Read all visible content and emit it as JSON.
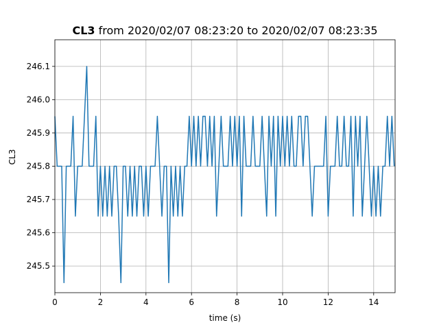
{
  "chart_data": {
    "type": "line",
    "title_name": "CL3",
    "title": "from 2020/02/07 08:23:20 to 2020/02/07 08:23:35",
    "xlabel": "time (s)",
    "ylabel": "CL3",
    "color": "#1f77b4",
    "grid": true,
    "xlim": [
      0,
      14.94
    ],
    "ylim": [
      245.42,
      246.18
    ],
    "xticks": [
      0,
      2,
      4,
      6,
      8,
      10,
      12,
      14
    ],
    "yticks": [
      245.5,
      245.6,
      245.7,
      245.8,
      245.9,
      {
        "value": 246,
        "label": "246.0"
      },
      246.1
    ],
    "x": [
      0,
      0.1,
      0.2,
      0.3,
      0.4,
      0.5,
      0.6,
      0.7,
      0.8,
      0.9,
      1,
      1.1,
      1.2,
      1.3,
      1.4,
      1.5,
      1.6,
      1.7,
      1.8,
      1.9,
      2,
      2.1,
      2.2,
      2.3,
      2.4,
      2.5,
      2.6,
      2.7,
      2.8,
      2.9,
      3,
      3.1,
      3.2,
      3.3,
      3.4,
      3.5,
      3.6,
      3.7,
      3.8,
      3.9,
      4,
      4.1,
      4.2,
      4.3,
      4.4,
      4.5,
      4.6,
      4.7,
      4.8,
      4.9,
      5,
      5.1,
      5.2,
      5.3,
      5.4,
      5.5,
      5.6,
      5.7,
      5.8,
      5.9,
      6,
      6.1,
      6.2,
      6.3,
      6.4,
      6.5,
      6.6,
      6.7,
      6.8,
      6.9,
      7,
      7.1,
      7.2,
      7.3,
      7.4,
      7.5,
      7.6,
      7.7,
      7.8,
      7.9,
      8,
      8.1,
      8.2,
      8.3,
      8.4,
      8.5,
      8.6,
      8.7,
      8.8,
      8.9,
      9,
      9.1,
      9.2,
      9.3,
      9.4,
      9.5,
      9.6,
      9.7,
      9.8,
      9.9,
      10,
      10.1,
      10.2,
      10.3,
      10.4,
      10.5,
      10.6,
      10.7,
      10.8,
      10.9,
      11,
      11.1,
      11.2,
      11.3,
      11.4,
      11.5,
      11.6,
      11.7,
      11.8,
      11.9,
      12,
      12.1,
      12.2,
      12.3,
      12.4,
      12.5,
      12.6,
      12.7,
      12.8,
      12.9,
      13,
      13.1,
      13.2,
      13.3,
      13.4,
      13.5,
      13.6,
      13.7,
      13.8,
      13.9,
      14,
      14.1,
      14.2,
      14.3,
      14.4,
      14.5,
      14.6,
      14.7,
      14.8,
      14.9
    ],
    "values": [
      245.95,
      245.8,
      245.8,
      245.8,
      245.45,
      245.8,
      245.8,
      245.8,
      245.95,
      245.65,
      245.8,
      245.8,
      245.8,
      245.95,
      246.1,
      245.8,
      245.8,
      245.8,
      245.95,
      245.65,
      245.8,
      245.65,
      245.8,
      245.65,
      245.8,
      245.65,
      245.8,
      245.8,
      245.65,
      245.45,
      245.8,
      245.8,
      245.65,
      245.8,
      245.65,
      245.8,
      245.65,
      245.8,
      245.8,
      245.65,
      245.8,
      245.65,
      245.8,
      245.8,
      245.8,
      245.95,
      245.8,
      245.65,
      245.8,
      245.8,
      245.45,
      245.8,
      245.65,
      245.8,
      245.65,
      245.8,
      245.65,
      245.8,
      245.8,
      245.95,
      245.8,
      245.95,
      245.8,
      245.95,
      245.8,
      245.95,
      245.95,
      245.8,
      245.95,
      245.8,
      245.95,
      245.65,
      245.8,
      245.95,
      245.8,
      245.8,
      245.8,
      245.95,
      245.8,
      245.95,
      245.8,
      245.95,
      245.65,
      245.95,
      245.8,
      245.8,
      245.8,
      245.95,
      245.8,
      245.8,
      245.8,
      245.95,
      245.8,
      245.65,
      245.95,
      245.8,
      245.95,
      245.65,
      245.95,
      245.8,
      245.95,
      245.8,
      245.95,
      245.8,
      245.95,
      245.8,
      245.8,
      245.95,
      245.95,
      245.8,
      245.95,
      245.95,
      245.8,
      245.65,
      245.8,
      245.8,
      245.8,
      245.8,
      245.8,
      245.95,
      245.65,
      245.8,
      245.8,
      245.8,
      245.95,
      245.8,
      245.8,
      245.95,
      245.8,
      245.8,
      245.95,
      245.65,
      245.95,
      245.8,
      245.95,
      245.65,
      245.8,
      245.95,
      245.8,
      245.65,
      245.8,
      245.65,
      245.8,
      245.65,
      245.8,
      245.8,
      245.95,
      245.8,
      245.95,
      245.8
    ]
  }
}
